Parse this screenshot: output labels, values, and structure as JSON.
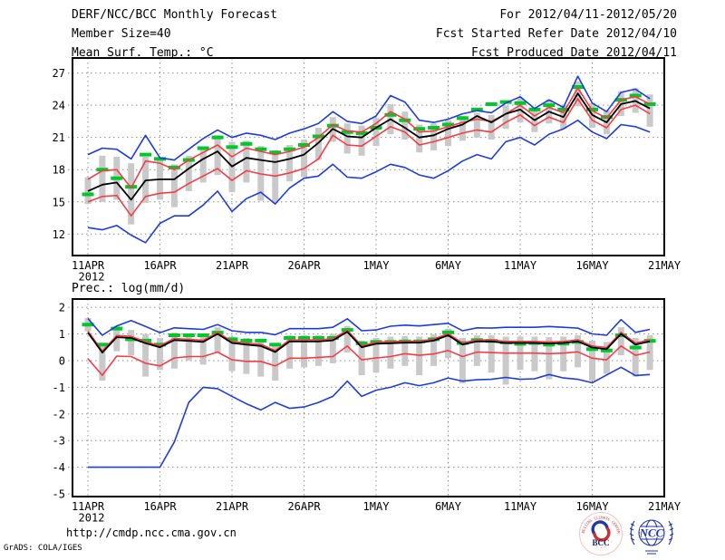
{
  "header": {
    "title": "DERF/NCC/BCC Monthly Forecast",
    "member_size": "Member Size=40",
    "variable_label": "Mean Surf. Temp.: °C",
    "forecast_range": "For 2012/04/11-2012/05/20",
    "fcst_started": "Fcst Started Refer Date 2012/04/10",
    "fcst_produced": "Fcst Produced Date 2012/04/11"
  },
  "footer": {
    "url": "http://cmdp.ncc.cma.gov.cn",
    "credit": "GrADS: COLA/IGES",
    "logos": [
      {
        "name": "BCC",
        "rim": "BEIJING CLIMATE CENTER"
      },
      {
        "name": "NCC"
      }
    ]
  },
  "colors": {
    "blue": "#1e3cdc",
    "red": "#f53c46",
    "green": "#00c828",
    "black": "#000000",
    "grey_bar": "#c9c9c9",
    "grid": "#8f8f8f",
    "logo_blue": "#2438a6",
    "logo_red": "#cf2e2e"
  },
  "chart_data": [
    {
      "id": "temperature",
      "type": "line",
      "title": "Mean Surf. Temp.: °C",
      "x_tick_labels": [
        "11APR",
        "16APR",
        "21APR",
        "26APR",
        "1MAY",
        "6MAY",
        "11MAY",
        "16MAY",
        "21MAY"
      ],
      "x_tick_days": [
        0,
        5,
        10,
        15,
        20,
        25,
        30,
        35,
        40
      ],
      "x_year_label": "2012",
      "n_days": 40,
      "ylim": [
        10.0,
        28.4
      ],
      "yticks": [
        27,
        24,
        21,
        18,
        15,
        12
      ],
      "grid": true,
      "legend": "none",
      "bars": {
        "name": "ensemble-spread",
        "color": "grey_bar",
        "ranges": [
          [
            14.8,
            17.3
          ],
          [
            15.0,
            19.3
          ],
          [
            15.2,
            19.2
          ],
          [
            12.9,
            18.6
          ],
          [
            14.9,
            19.2
          ],
          [
            15.2,
            19.0
          ],
          [
            14.5,
            18.5
          ],
          [
            16.0,
            19.3
          ],
          [
            16.8,
            19.9
          ],
          [
            17.5,
            21.2
          ],
          [
            15.9,
            20.6
          ],
          [
            16.8,
            20.7
          ],
          [
            15.1,
            20.2
          ],
          [
            14.9,
            19.8
          ],
          [
            16.9,
            20.3
          ],
          [
            17.3,
            20.8
          ],
          [
            18.9,
            21.9
          ],
          [
            20.6,
            22.9
          ],
          [
            19.5,
            22.3
          ],
          [
            19.3,
            22.1
          ],
          [
            20.2,
            22.8
          ],
          [
            21.3,
            24.1
          ],
          [
            20.8,
            23.4
          ],
          [
            19.6,
            22.2
          ],
          [
            19.8,
            22.3
          ],
          [
            20.2,
            22.6
          ],
          [
            20.7,
            23.0
          ],
          [
            21.0,
            23.3
          ],
          [
            20.8,
            23.1
          ],
          [
            21.8,
            24.0
          ],
          [
            22.4,
            24.7
          ],
          [
            21.5,
            23.8
          ],
          [
            22.3,
            24.5
          ],
          [
            21.8,
            24.0
          ],
          [
            23.9,
            26.2
          ],
          [
            21.9,
            24.2
          ],
          [
            21.3,
            23.5
          ],
          [
            23.0,
            25.3
          ],
          [
            23.3,
            25.6
          ],
          [
            22.0,
            25.0
          ]
        ]
      },
      "series": [
        {
          "name": "reference",
          "color": "green",
          "style": "dash-markers",
          "values": [
            15.7,
            18.0,
            17.2,
            16.4,
            19.4,
            19.0,
            18.2,
            18.9,
            20.0,
            21.0,
            20.1,
            20.4,
            19.9,
            19.6,
            19.9,
            20.3,
            21.1,
            22.1,
            21.5,
            21.4,
            21.9,
            23.1,
            22.6,
            21.8,
            21.9,
            22.2,
            22.8,
            23.6,
            24.1,
            24.3,
            24.2,
            23.6,
            24.0,
            23.6,
            25.7,
            23.6,
            22.9,
            24.5,
            24.9,
            24.1
          ]
        },
        {
          "name": "ensemble-max",
          "color": "blue",
          "style": "line",
          "values": [
            19.4,
            20.0,
            19.9,
            19.0,
            21.2,
            19.1,
            18.9,
            19.9,
            20.9,
            21.7,
            21.0,
            21.4,
            21.2,
            20.8,
            21.4,
            21.8,
            22.3,
            23.4,
            22.5,
            22.3,
            23.0,
            24.9,
            24.3,
            22.6,
            22.4,
            22.7,
            23.2,
            23.5,
            23.3,
            24.2,
            24.8,
            23.7,
            24.5,
            23.8,
            26.7,
            24.2,
            23.4,
            25.2,
            25.5,
            24.6
          ]
        },
        {
          "name": "ensemble-min",
          "color": "blue",
          "style": "line",
          "values": [
            12.6,
            12.4,
            12.8,
            11.9,
            11.2,
            13.0,
            13.7,
            13.7,
            14.7,
            16.0,
            14.1,
            15.3,
            15.9,
            14.8,
            16.3,
            17.2,
            17.4,
            18.5,
            17.3,
            17.2,
            17.8,
            18.5,
            18.2,
            17.5,
            17.2,
            17.9,
            18.8,
            19.4,
            19.0,
            20.6,
            21.0,
            20.3,
            21.3,
            21.8,
            22.6,
            21.5,
            20.9,
            22.2,
            22.0,
            21.5
          ]
        },
        {
          "name": "upper-quartile",
          "color": "red",
          "style": "line",
          "values": [
            17.1,
            17.9,
            18.0,
            16.3,
            18.8,
            18.6,
            18.0,
            18.9,
            19.6,
            20.3,
            19.2,
            20.0,
            19.7,
            19.4,
            19.7,
            20.1,
            21.0,
            22.2,
            21.6,
            21.5,
            22.3,
            23.4,
            22.7,
            21.5,
            21.6,
            22.0,
            22.4,
            22.7,
            22.5,
            23.2,
            24.0,
            23.0,
            23.8,
            23.3,
            25.6,
            23.5,
            22.8,
            24.5,
            24.8,
            24.1
          ]
        },
        {
          "name": "lower-quartile",
          "color": "red",
          "style": "line",
          "values": [
            15.0,
            15.5,
            15.6,
            13.7,
            15.5,
            15.8,
            15.9,
            16.7,
            17.4,
            18.1,
            17.0,
            17.9,
            17.6,
            17.4,
            17.7,
            18.1,
            19.0,
            21.2,
            20.3,
            20.2,
            21.1,
            22.0,
            21.5,
            20.3,
            20.6,
            21.0,
            21.4,
            21.7,
            21.5,
            22.4,
            23.1,
            22.1,
            22.9,
            22.4,
            24.6,
            22.6,
            21.9,
            23.6,
            24.0,
            23.2
          ]
        },
        {
          "name": "ensemble-mean",
          "color": "black",
          "style": "line",
          "values": [
            16.0,
            16.6,
            16.8,
            15.2,
            17.0,
            17.1,
            17.1,
            18.1,
            19.0,
            19.7,
            18.3,
            19.1,
            18.9,
            18.7,
            19.0,
            19.4,
            20.5,
            21.8,
            21.1,
            21.0,
            21.9,
            22.7,
            21.9,
            21.0,
            21.2,
            21.8,
            22.2,
            23.0,
            22.4,
            23.2,
            23.6,
            22.6,
            23.4,
            22.9,
            25.1,
            23.1,
            22.4,
            24.1,
            24.4,
            23.7
          ]
        }
      ]
    },
    {
      "id": "precipitation",
      "type": "line",
      "title": "Prec.: log(mm/d)",
      "x_tick_labels": [
        "11APR",
        "16APR",
        "21APR",
        "26APR",
        "1MAY",
        "6MAY",
        "11MAY",
        "16MAY",
        "21MAY"
      ],
      "x_tick_days": [
        0,
        5,
        10,
        15,
        20,
        25,
        30,
        35,
        40
      ],
      "x_year_label": "2012",
      "n_days": 40,
      "ylim": [
        -5.1,
        2.31
      ],
      "yticks": [
        2,
        1,
        0,
        -1,
        -2,
        -3,
        -4,
        -5
      ],
      "grid": true,
      "legend": "none",
      "bars": {
        "name": "ensemble-spread",
        "color": "grey_bar",
        "ranges": [
          [
            1.1,
            1.6
          ],
          [
            -0.75,
            0.65
          ],
          [
            0.35,
            1.3
          ],
          [
            0.2,
            1.15
          ],
          [
            -0.6,
            1.0
          ],
          [
            -0.35,
            0.85
          ],
          [
            -0.3,
            1.05
          ],
          [
            0.0,
            1.0
          ],
          [
            -0.15,
            0.95
          ],
          [
            0.3,
            1.25
          ],
          [
            -0.4,
            0.9
          ],
          [
            -0.5,
            0.85
          ],
          [
            -0.6,
            0.8
          ],
          [
            -0.75,
            0.6
          ],
          [
            -0.3,
            0.95
          ],
          [
            -0.25,
            0.95
          ],
          [
            -0.2,
            0.95
          ],
          [
            -0.1,
            1.0
          ],
          [
            0.3,
            1.3
          ],
          [
            -0.55,
            0.75
          ],
          [
            -0.45,
            0.85
          ],
          [
            -0.3,
            0.9
          ],
          [
            -0.2,
            0.92
          ],
          [
            -0.55,
            0.9
          ],
          [
            -0.2,
            0.98
          ],
          [
            0.1,
            1.2
          ],
          [
            -0.85,
            0.85
          ],
          [
            -0.2,
            0.95
          ],
          [
            -0.45,
            0.95
          ],
          [
            -0.9,
            0.9
          ],
          [
            -0.35,
            0.9
          ],
          [
            -0.4,
            0.9
          ],
          [
            -0.7,
            0.88
          ],
          [
            -0.4,
            0.9
          ],
          [
            -0.25,
            0.95
          ],
          [
            -0.75,
            0.75
          ],
          [
            -0.5,
            0.7
          ],
          [
            0.2,
            1.25
          ],
          [
            -0.6,
            0.85
          ],
          [
            -0.35,
            0.95
          ]
        ]
      },
      "series": [
        {
          "name": "reference",
          "color": "green",
          "style": "dash-markers",
          "values": [
            1.35,
            0.6,
            1.2,
            0.8,
            0.75,
            0.6,
            0.95,
            0.95,
            0.95,
            1.05,
            0.8,
            0.75,
            0.75,
            0.6,
            0.85,
            0.85,
            0.85,
            0.85,
            1.15,
            0.65,
            0.7,
            0.7,
            0.72,
            0.72,
            0.8,
            1.06,
            0.66,
            0.77,
            0.74,
            0.68,
            0.63,
            0.66,
            0.6,
            0.64,
            0.7,
            0.43,
            0.38,
            0.95,
            0.49,
            0.74
          ]
        },
        {
          "name": "ensemble-max",
          "color": "blue",
          "style": "line",
          "values": [
            1.58,
            0.95,
            1.3,
            1.5,
            1.28,
            1.05,
            1.23,
            1.2,
            1.17,
            1.35,
            1.12,
            1.06,
            1.06,
            0.97,
            1.2,
            1.2,
            1.2,
            1.25,
            1.57,
            1.12,
            1.15,
            1.29,
            1.33,
            1.3,
            1.35,
            1.4,
            1.12,
            1.23,
            1.22,
            1.25,
            1.25,
            1.25,
            1.28,
            1.25,
            1.22,
            1.0,
            0.95,
            1.54,
            1.06,
            1.17
          ]
        },
        {
          "name": "ensemble-min",
          "color": "blue",
          "style": "line",
          "values": [
            -4.0,
            -4.0,
            -4.0,
            -4.0,
            -4.0,
            -4.0,
            -3.05,
            -1.57,
            -1.0,
            -1.05,
            -1.34,
            -1.62,
            -1.85,
            -1.57,
            -1.79,
            -1.74,
            -1.57,
            -1.34,
            -0.77,
            -1.34,
            -1.11,
            -1.0,
            -0.83,
            -0.94,
            -0.83,
            -0.65,
            -0.77,
            -0.72,
            -0.7,
            -0.63,
            -0.7,
            -0.68,
            -0.52,
            -0.65,
            -0.7,
            -0.83,
            -0.54,
            -0.25,
            -0.56,
            -0.52
          ]
        },
        {
          "name": "upper-quartile",
          "color": "red",
          "style": "line",
          "values": [
            1.11,
            0.36,
            0.94,
            0.91,
            0.71,
            0.56,
            0.83,
            0.8,
            0.76,
            1.06,
            0.72,
            0.66,
            0.61,
            0.38,
            0.78,
            0.78,
            0.78,
            0.82,
            1.14,
            0.56,
            0.69,
            0.71,
            0.73,
            0.73,
            0.81,
            1.01,
            0.66,
            0.78,
            0.78,
            0.72,
            0.72,
            0.72,
            0.7,
            0.72,
            0.78,
            0.55,
            0.49,
            1.06,
            0.66,
            0.78
          ]
        },
        {
          "name": "lower-quartile",
          "color": "red",
          "style": "line",
          "values": [
            0.07,
            -0.55,
            0.17,
            0.15,
            -0.1,
            -0.2,
            0.1,
            0.15,
            0.15,
            0.32,
            0.03,
            -0.03,
            -0.03,
            -0.2,
            0.09,
            0.09,
            0.12,
            0.15,
            0.55,
            0.03,
            0.1,
            0.15,
            0.26,
            0.2,
            0.25,
            0.38,
            0.15,
            0.32,
            0.3,
            0.28,
            0.28,
            0.28,
            0.26,
            0.28,
            0.33,
            0.09,
            0.03,
            0.55,
            0.2,
            0.32
          ]
        },
        {
          "name": "ensemble-mean",
          "color": "black",
          "style": "line",
          "values": [
            1.05,
            0.3,
            0.88,
            0.85,
            0.65,
            0.5,
            0.77,
            0.74,
            0.7,
            1.0,
            0.66,
            0.6,
            0.55,
            0.32,
            0.72,
            0.72,
            0.72,
            0.76,
            1.08,
            0.5,
            0.63,
            0.65,
            0.67,
            0.67,
            0.75,
            0.95,
            0.6,
            0.72,
            0.72,
            0.66,
            0.66,
            0.66,
            0.64,
            0.66,
            0.72,
            0.49,
            0.43,
            1.0,
            0.6,
            0.72
          ]
        }
      ]
    }
  ]
}
